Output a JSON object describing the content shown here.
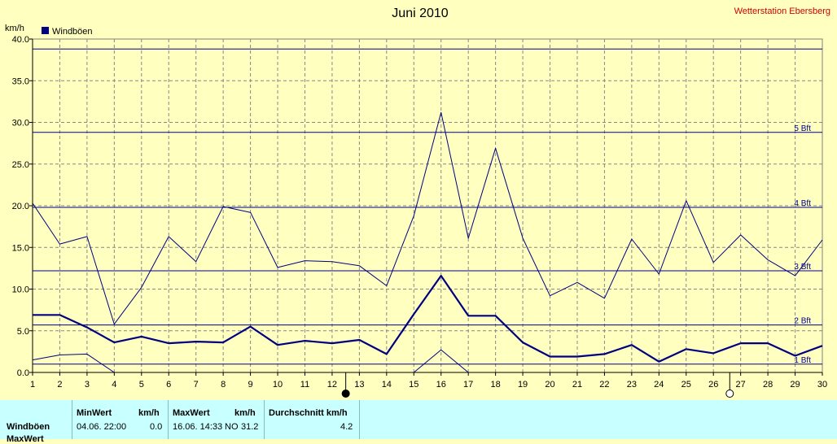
{
  "chart_data": {
    "type": "line",
    "title": "Juni 2010",
    "station": "Wetterstation Ebersberg",
    "ylabel": "km/h",
    "ylim": [
      0,
      40
    ],
    "yticks": [
      "0.0",
      "5.0",
      "10.0",
      "15.0",
      "20.0",
      "25.0",
      "30.0",
      "35.0",
      "40.0"
    ],
    "x": [
      1,
      2,
      3,
      4,
      5,
      6,
      7,
      8,
      9,
      10,
      11,
      12,
      13,
      14,
      15,
      16,
      17,
      18,
      19,
      20,
      21,
      22,
      23,
      24,
      25,
      26,
      27,
      28,
      29,
      30
    ],
    "legend": [
      {
        "name": "Windböen",
        "color": "#000080"
      }
    ],
    "series": [
      {
        "name": "Windböen",
        "role": "mean",
        "values": [
          6.9,
          6.9,
          5.4,
          3.6,
          4.3,
          3.5,
          3.7,
          3.6,
          5.5,
          3.3,
          3.8,
          3.5,
          3.9,
          2.2,
          7.0,
          11.6,
          6.8,
          6.8,
          3.6,
          1.9,
          1.9,
          2.2,
          3.3,
          1.3,
          2.8,
          2.3,
          3.5,
          3.5,
          2.0,
          3.2
        ]
      },
      {
        "role": "max",
        "values": [
          20.3,
          15.4,
          16.3,
          5.8,
          10.2,
          16.3,
          13.3,
          19.9,
          19.2,
          12.6,
          13.4,
          13.3,
          12.8,
          10.4,
          18.8,
          31.2,
          16.1,
          26.9,
          16.1,
          9.2,
          10.8,
          8.9,
          16.0,
          11.8,
          20.6,
          13.2,
          16.5,
          13.5,
          11.6,
          15.9
        ]
      },
      {
        "role": "min",
        "values": [
          1.5,
          2.1,
          2.2,
          0.0,
          null,
          null,
          null,
          null,
          null,
          null,
          null,
          null,
          null,
          null,
          0.0,
          2.7,
          0.0,
          null,
          null,
          null,
          null,
          null,
          null,
          null,
          null,
          null,
          null,
          null,
          null,
          null
        ]
      }
    ],
    "beaufort_lines": [
      {
        "value": 1.0,
        "label": "1 Bft"
      },
      {
        "value": 5.7,
        "label": "2 Bft"
      },
      {
        "value": 12.2,
        "label": "3 Bft"
      },
      {
        "value": 19.8,
        "label": "4 Bft"
      },
      {
        "value": 28.8,
        "label": "5 Bft"
      },
      {
        "value": 38.8,
        "label": ""
      }
    ],
    "moon_phases": [
      {
        "day": 12.5,
        "phase": "new-moon"
      },
      {
        "day": 26.6,
        "phase": "full-moon"
      }
    ],
    "grid": true
  },
  "stats": {
    "row_label": "Windböen",
    "row2_label": "MaxWert",
    "min_header": "MinWert",
    "min_unit": "km/h",
    "max_header": "MaxWert",
    "max_unit": "km/h",
    "avg_header": "Durchschnitt km/h",
    "min_time": "04.06.  22:00",
    "min_value": "0.0",
    "max_time": "16.06.  14:33",
    "max_dir": "NO",
    "max_value": "31.2",
    "avg_value": "4.2"
  }
}
